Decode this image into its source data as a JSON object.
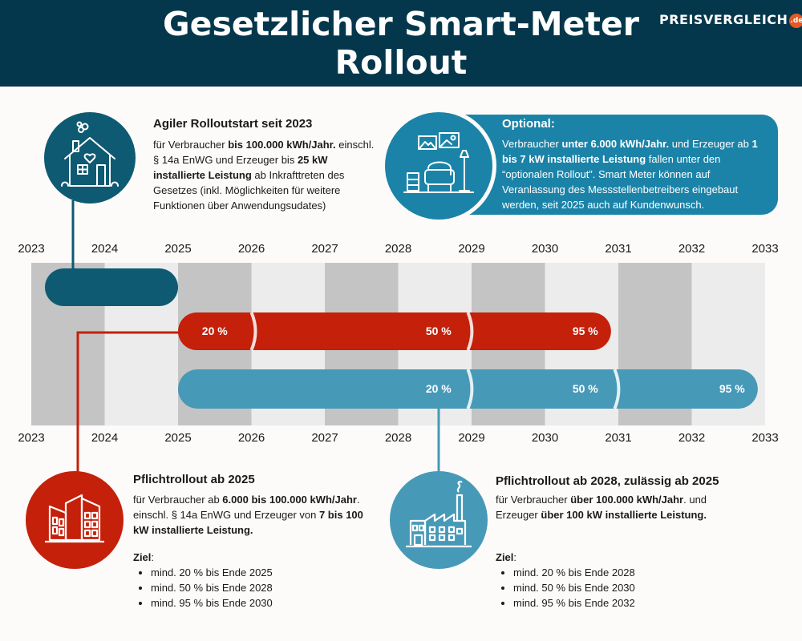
{
  "header": {
    "title": "Gesetzlicher Smart-Meter Rollout",
    "logo_text": "PREISVERGLEICH",
    "logo_badge": ".de"
  },
  "colors": {
    "header_bg": "#05374c",
    "agile": "#0e5a72",
    "pflicht2025": "#c4200a",
    "pflicht2028": "#4799b8",
    "optional": "#1b83a8"
  },
  "agile": {
    "title": "Agiler Rolloutstart seit 2023",
    "text": [
      {
        "t": "für Verbraucher "
      },
      {
        "t": "bis 100.000 kWh/Jahr.",
        "b": true
      },
      {
        "t": " einschl. § 14a EnWG und Erzeuger bis "
      },
      {
        "t": "25 kW installierte Leistung",
        "b": true
      },
      {
        "t": " ab Inkrafttreten des Gesetzes (inkl. Möglichkeiten für weitere Funktionen über Anwendungsudates)"
      }
    ],
    "icon": "house-icon"
  },
  "optional": {
    "title": "Optional:",
    "text": [
      {
        "t": "Verbraucher "
      },
      {
        "t": "unter 6.000 kWh/Jahr.",
        "b": true
      },
      {
        "t": " und Erzeuger ab "
      },
      {
        "t": "1 bis 7  kW installierte Leistung",
        "b": true
      },
      {
        "t": " fallen unter den “optionalen Rollout”. Smart Meter können auf Veranlassung des Messstellenbetreibers eingebaut werden, seit 2025 auch auf Kundenwunsch."
      }
    ],
    "icon": "living-room-icon"
  },
  "pflicht2025": {
    "title": "Pflichtrollout ab 2025",
    "text": [
      {
        "t": "für Verbraucher ab "
      },
      {
        "t": "6.000 bis 100.000 kWh/Jahr",
        "b": true
      },
      {
        "t": ". einschl. § 14a EnWG und Erzeuger von "
      },
      {
        "t": "7 bis 100 kW installierte Leistung.",
        "b": true
      }
    ],
    "goal_label": "Ziel",
    "goal_colon": ":",
    "goals": [
      "mind. 20 % bis Ende 2025",
      "mind. 50 % bis Ende 2028",
      "mind. 95 % bis Ende 2030"
    ],
    "icon": "apartment-building-icon"
  },
  "pflicht2028": {
    "title": "Pflichtrollout ab 2028, zulässig ab 2025",
    "text": [
      {
        "t": "für Verbraucher "
      },
      {
        "t": "über 100.000 kWh/Jahr",
        "b": true
      },
      {
        "t": ". und Erzeuger "
      },
      {
        "t": "über 100 kW installierte Leistung.",
        "b": true
      }
    ],
    "goal_label": "Ziel",
    "goal_colon": ":",
    "goals": [
      "mind. 20 % bis Ende 2028",
      "mind. 50 % bis Ende 2030",
      "mind. 95 % bis Ende 2032"
    ],
    "icon": "factory-icon"
  },
  "timeline": {
    "years": [
      "2023",
      "2024",
      "2025",
      "2026",
      "2027",
      "2028",
      "2029",
      "2030",
      "2031",
      "2032",
      "2033"
    ],
    "bars": [
      {
        "name": "agile",
        "start": 2023.2,
        "end": 2025.0,
        "labels": []
      },
      {
        "name": "pflicht2025",
        "start": 2025.0,
        "end": 2030.9,
        "labels": [
          {
            "text": "20 %",
            "at": 2025.5,
            "seg_end": 2026.0
          },
          {
            "text": "50 %",
            "at": 2028.55,
            "seg_end": 2028.95
          },
          {
            "text": "95 %",
            "at": 2030.55
          }
        ]
      },
      {
        "name": "pflicht2028",
        "start": 2025.0,
        "end": 2032.9,
        "labels": [
          {
            "text": "20 %",
            "at": 2028.55,
            "seg_end": 2028.95
          },
          {
            "text": "50 %",
            "at": 2030.55,
            "seg_end": 2030.95
          },
          {
            "text": "95 %",
            "at": 2032.55
          }
        ]
      }
    ]
  }
}
